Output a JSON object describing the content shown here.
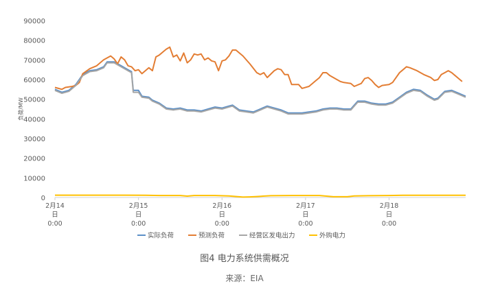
{
  "figure": {
    "caption": "图4 电力系统供需概况",
    "source": "来源：EIA"
  },
  "chart_data": {
    "type": "line",
    "xlabel": "",
    "ylabel": "负荷/MW",
    "ylim": [
      0,
      90000
    ],
    "y_ticks": [
      0,
      10000,
      20000,
      30000,
      40000,
      50000,
      60000,
      70000,
      80000,
      90000
    ],
    "x_ticks": [
      {
        "lines": [
          "2月14",
          "日",
          "0:00"
        ],
        "x": 0
      },
      {
        "lines": [
          "2月15",
          "日",
          "0:00"
        ],
        "x": 24
      },
      {
        "lines": [
          "2月16",
          "日",
          "0:00"
        ],
        "x": 48
      },
      {
        "lines": [
          "2月17",
          "日",
          "0:00"
        ],
        "x": 72
      },
      {
        "lines": [
          "2月18",
          "日",
          "0:00"
        ],
        "x": 96
      }
    ],
    "x_unit": "hours since 2月14日 0:00",
    "grid": false,
    "legend_position": "bottom",
    "series": [
      {
        "name": "实际负荷",
        "color": "#5b8fc7",
        "points": [
          [
            0,
            55000
          ],
          [
            2,
            53500
          ],
          [
            4,
            54500
          ],
          [
            6,
            57500
          ],
          [
            8,
            62500
          ],
          [
            10,
            64500
          ],
          [
            12,
            65000
          ],
          [
            14,
            66500
          ],
          [
            15,
            69000
          ],
          [
            17,
            69000
          ],
          [
            19,
            67000
          ],
          [
            21,
            65000
          ],
          [
            22,
            64000
          ],
          [
            22.5,
            54500
          ],
          [
            24,
            54500
          ],
          [
            25,
            51500
          ],
          [
            27,
            51000
          ],
          [
            28,
            49500
          ],
          [
            30,
            48000
          ],
          [
            32,
            45500
          ],
          [
            34,
            45000
          ],
          [
            36,
            45500
          ],
          [
            38,
            44500
          ],
          [
            40,
            44500
          ],
          [
            42,
            44000
          ],
          [
            44,
            45000
          ],
          [
            46,
            46000
          ],
          [
            48,
            45500
          ],
          [
            50,
            46500
          ],
          [
            51,
            47000
          ],
          [
            53,
            44500
          ],
          [
            55,
            44000
          ],
          [
            57,
            43500
          ],
          [
            59,
            45000
          ],
          [
            61,
            46500
          ],
          [
            63,
            45500
          ],
          [
            65,
            44500
          ],
          [
            67,
            43000
          ],
          [
            69,
            43000
          ],
          [
            71,
            43000
          ],
          [
            73,
            43500
          ],
          [
            75,
            44000
          ],
          [
            77,
            45000
          ],
          [
            79,
            45500
          ],
          [
            81,
            45500
          ],
          [
            83,
            45000
          ],
          [
            85,
            45000
          ],
          [
            87,
            49000
          ],
          [
            89,
            49000
          ],
          [
            91,
            48000
          ],
          [
            93,
            47500
          ],
          [
            95,
            47500
          ],
          [
            97,
            48500
          ],
          [
            99,
            51000
          ],
          [
            101,
            53500
          ],
          [
            103,
            55000
          ],
          [
            105,
            54500
          ],
          [
            107,
            52000
          ],
          [
            109,
            50000
          ],
          [
            110,
            50500
          ],
          [
            112,
            54000
          ],
          [
            114,
            54500
          ],
          [
            116,
            53000
          ],
          [
            118,
            51500
          ]
        ]
      },
      {
        "name": "预测负荷",
        "color": "#e37d33",
        "points": [
          [
            0,
            56000
          ],
          [
            1,
            55500
          ],
          [
            2,
            55000
          ],
          [
            3,
            56000
          ],
          [
            5,
            56500
          ],
          [
            6,
            57000
          ],
          [
            7,
            58500
          ],
          [
            8,
            63000
          ],
          [
            10,
            65500
          ],
          [
            12,
            67000
          ],
          [
            14,
            70000
          ],
          [
            16,
            72000
          ],
          [
            17,
            70500
          ],
          [
            18,
            68000
          ],
          [
            19,
            71500
          ],
          [
            20,
            70000
          ],
          [
            21,
            67000
          ],
          [
            22,
            66500
          ],
          [
            23,
            64500
          ],
          [
            24,
            65000
          ],
          [
            25,
            63000
          ],
          [
            27,
            66000
          ],
          [
            28,
            64500
          ],
          [
            29,
            71500
          ],
          [
            30,
            72500
          ],
          [
            31,
            74000
          ],
          [
            32,
            75500
          ],
          [
            33,
            76500
          ],
          [
            34,
            71500
          ],
          [
            35,
            72500
          ],
          [
            36,
            69500
          ],
          [
            37,
            73500
          ],
          [
            38,
            68500
          ],
          [
            39,
            70000
          ],
          [
            40,
            73000
          ],
          [
            41,
            72500
          ],
          [
            42,
            73000
          ],
          [
            43,
            70000
          ],
          [
            44,
            71000
          ],
          [
            45,
            69500
          ],
          [
            46,
            69000
          ],
          [
            47,
            64500
          ],
          [
            48,
            69500
          ],
          [
            49,
            70000
          ],
          [
            50,
            72000
          ],
          [
            51,
            75000
          ],
          [
            52,
            75000
          ],
          [
            54,
            72000
          ],
          [
            56,
            68000
          ],
          [
            58,
            63500
          ],
          [
            59,
            62500
          ],
          [
            60,
            63500
          ],
          [
            61,
            61000
          ],
          [
            63,
            64500
          ],
          [
            64,
            65500
          ],
          [
            65,
            65000
          ],
          [
            66,
            62500
          ],
          [
            67,
            62500
          ],
          [
            68,
            57500
          ],
          [
            70,
            57500
          ],
          [
            71,
            55500
          ],
          [
            73,
            56500
          ],
          [
            75,
            59500
          ],
          [
            76,
            61000
          ],
          [
            77,
            63500
          ],
          [
            78,
            63500
          ],
          [
            79,
            62000
          ],
          [
            81,
            60000
          ],
          [
            82,
            59000
          ],
          [
            83,
            58500
          ],
          [
            85,
            58000
          ],
          [
            86,
            56500
          ],
          [
            88,
            58000
          ],
          [
            89,
            60500
          ],
          [
            90,
            61000
          ],
          [
            91,
            59500
          ],
          [
            92,
            57500
          ],
          [
            93,
            56000
          ],
          [
            94,
            57000
          ],
          [
            96,
            57500
          ],
          [
            97,
            58500
          ],
          [
            99,
            63500
          ],
          [
            100,
            65000
          ],
          [
            101,
            66500
          ],
          [
            102,
            66000
          ],
          [
            104,
            64500
          ],
          [
            106,
            62500
          ],
          [
            108,
            61000
          ],
          [
            109,
            59500
          ],
          [
            110,
            60000
          ],
          [
            111,
            62500
          ],
          [
            112,
            63500
          ],
          [
            113,
            64500
          ],
          [
            114,
            63500
          ],
          [
            115,
            62000
          ],
          [
            116,
            60500
          ],
          [
            117,
            59000
          ]
        ]
      },
      {
        "name": "经营区发电出力",
        "color": "#a5a5a5",
        "points": [
          [
            0,
            54500
          ],
          [
            2,
            53000
          ],
          [
            4,
            54000
          ],
          [
            6,
            57000
          ],
          [
            8,
            62000
          ],
          [
            10,
            64000
          ],
          [
            12,
            64500
          ],
          [
            14,
            66000
          ],
          [
            15,
            68500
          ],
          [
            17,
            68500
          ],
          [
            19,
            66500
          ],
          [
            21,
            64500
          ],
          [
            22,
            63500
          ],
          [
            22.5,
            53500
          ],
          [
            24,
            53500
          ],
          [
            25,
            51000
          ],
          [
            27,
            50500
          ],
          [
            28,
            49000
          ],
          [
            30,
            47500
          ],
          [
            32,
            45000
          ],
          [
            34,
            44500
          ],
          [
            36,
            45000
          ],
          [
            38,
            44000
          ],
          [
            40,
            44000
          ],
          [
            42,
            43500
          ],
          [
            44,
            44500
          ],
          [
            46,
            45500
          ],
          [
            48,
            45000
          ],
          [
            50,
            46000
          ],
          [
            51,
            46500
          ],
          [
            53,
            44000
          ],
          [
            55,
            43500
          ],
          [
            57,
            43000
          ],
          [
            59,
            44500
          ],
          [
            61,
            46000
          ],
          [
            63,
            45000
          ],
          [
            65,
            44000
          ],
          [
            67,
            42500
          ],
          [
            69,
            42500
          ],
          [
            71,
            42500
          ],
          [
            73,
            43000
          ],
          [
            75,
            43500
          ],
          [
            77,
            44500
          ],
          [
            79,
            45000
          ],
          [
            81,
            45000
          ],
          [
            83,
            44500
          ],
          [
            85,
            44500
          ],
          [
            87,
            48500
          ],
          [
            89,
            48500
          ],
          [
            91,
            47500
          ],
          [
            93,
            47000
          ],
          [
            95,
            47000
          ],
          [
            97,
            48000
          ],
          [
            99,
            50500
          ],
          [
            101,
            53000
          ],
          [
            103,
            54500
          ],
          [
            105,
            54000
          ],
          [
            107,
            51500
          ],
          [
            109,
            49500
          ],
          [
            110,
            50000
          ],
          [
            112,
            53500
          ],
          [
            114,
            54000
          ],
          [
            116,
            52500
          ],
          [
            118,
            51000
          ]
        ]
      },
      {
        "name": "外购电力",
        "color": "#ffc000",
        "points": [
          [
            0,
            1200
          ],
          [
            10,
            1200
          ],
          [
            20,
            1200
          ],
          [
            26,
            1100
          ],
          [
            30,
            1000
          ],
          [
            36,
            1000
          ],
          [
            38,
            700
          ],
          [
            40,
            1000
          ],
          [
            46,
            1000
          ],
          [
            50,
            800
          ],
          [
            54,
            200
          ],
          [
            56,
            300
          ],
          [
            58,
            500
          ],
          [
            62,
            900
          ],
          [
            68,
            1000
          ],
          [
            76,
            1000
          ],
          [
            80,
            400
          ],
          [
            84,
            400
          ],
          [
            86,
            800
          ],
          [
            90,
            900
          ],
          [
            96,
            1000
          ],
          [
            100,
            1100
          ],
          [
            110,
            1100
          ],
          [
            118,
            1100
          ]
        ]
      }
    ]
  }
}
